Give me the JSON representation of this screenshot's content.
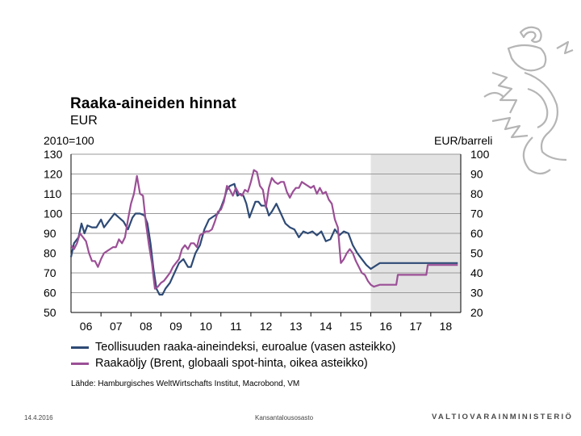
{
  "title": "Raaka-aineiden  hinnat",
  "subtitle": "EUR",
  "left_axis_unit": "2010=100",
  "right_axis_unit": "EUR/barreli",
  "colors": {
    "industrial": "#2e4a75",
    "brent": "#9b4f96",
    "forecast_shade": "#e3e3e3",
    "grid": "#999999"
  },
  "chart_data": {
    "type": "line",
    "x_range": [
      2006,
      2019
    ],
    "x_tick_values": [
      2006,
      2007,
      2008,
      2009,
      2010,
      2011,
      2012,
      2013,
      2014,
      2015,
      2016,
      2017,
      2018
    ],
    "x_tick_labels": [
      "06",
      "07",
      "08",
      "09",
      "10",
      "11",
      "12",
      "13",
      "14",
      "15",
      "16",
      "17",
      "18"
    ],
    "y_left": {
      "range": [
        50,
        130
      ],
      "ticks": [
        130,
        120,
        110,
        100,
        90,
        80,
        70,
        60,
        50
      ],
      "unit": "2010=100"
    },
    "y_right": {
      "range": [
        20,
        100
      ],
      "ticks": [
        100,
        90,
        80,
        70,
        60,
        50,
        40,
        30,
        20
      ],
      "unit": "EUR/barreli"
    },
    "forecast_start": 2016,
    "series": [
      {
        "name": "Teollisuuden raaka-aineindeksi, euroalue (vasen asteikko)",
        "axis": "left",
        "x": [
          2006.0,
          2006.1,
          2006.25,
          2006.35,
          2006.45,
          2006.55,
          2006.7,
          2006.85,
          2007.0,
          2007.1,
          2007.25,
          2007.45,
          2007.6,
          2007.75,
          2007.9,
          2008.05,
          2008.15,
          2008.3,
          2008.45,
          2008.55,
          2008.65,
          2008.75,
          2008.85,
          2008.95,
          2009.05,
          2009.15,
          2009.3,
          2009.45,
          2009.6,
          2009.75,
          2009.9,
          2010.0,
          2010.15,
          2010.3,
          2010.45,
          2010.6,
          2010.7,
          2010.8,
          2010.9,
          2011.0,
          2011.1,
          2011.2,
          2011.3,
          2011.45,
          2011.55,
          2011.65,
          2011.75,
          2011.85,
          2011.95,
          2012.05,
          2012.15,
          2012.25,
          2012.35,
          2012.5,
          2012.6,
          2012.7,
          2012.85,
          2013.0,
          2013.15,
          2013.3,
          2013.45,
          2013.6,
          2013.75,
          2013.9,
          2014.05,
          2014.2,
          2014.35,
          2014.5,
          2014.65,
          2014.8,
          2014.95,
          2015.1,
          2015.25,
          2015.4,
          2015.55,
          2015.7,
          2015.85,
          2016.0,
          2016.1,
          2016.3,
          2016.6,
          2017.0,
          2017.5,
          2018.0,
          2018.5,
          2018.9
        ],
        "values": [
          78,
          85,
          88,
          95,
          90,
          94,
          93,
          93,
          97,
          93,
          96,
          100,
          98,
          96,
          92,
          98,
          100,
          100,
          99,
          95,
          85,
          72,
          62,
          59,
          59,
          62,
          65,
          70,
          75,
          77,
          73,
          73,
          80,
          84,
          92,
          97,
          98,
          99,
          100,
          103,
          107,
          112,
          114,
          115,
          109,
          110,
          109,
          105,
          98,
          102,
          106,
          106,
          104,
          104,
          99,
          101,
          105,
          100,
          95,
          93,
          92,
          88,
          91,
          90,
          91,
          89,
          91,
          86,
          87,
          92,
          89,
          91,
          90,
          84,
          80,
          77,
          74,
          72,
          73,
          75,
          75,
          75,
          75,
          75,
          75,
          75
        ]
      },
      {
        "name": "Raakaöljy (Brent, globaali spot-hinta, oikea asteikko)",
        "axis": "right",
        "x": [
          2006.0,
          2006.1,
          2006.2,
          2006.3,
          2006.4,
          2006.5,
          2006.6,
          2006.7,
          2006.8,
          2006.9,
          2007.0,
          2007.1,
          2007.2,
          2007.3,
          2007.4,
          2007.5,
          2007.6,
          2007.7,
          2007.8,
          2007.9,
          2008.0,
          2008.1,
          2008.2,
          2008.3,
          2008.4,
          2008.5,
          2008.6,
          2008.7,
          2008.75,
          2008.8,
          2008.9,
          2009.0,
          2009.1,
          2009.2,
          2009.3,
          2009.4,
          2009.5,
          2009.6,
          2009.7,
          2009.8,
          2009.9,
          2010.0,
          2010.1,
          2010.2,
          2010.3,
          2010.4,
          2010.5,
          2010.6,
          2010.7,
          2010.8,
          2010.9,
          2011.0,
          2011.1,
          2011.2,
          2011.3,
          2011.4,
          2011.5,
          2011.6,
          2011.7,
          2011.8,
          2011.9,
          2012.0,
          2012.1,
          2012.2,
          2012.3,
          2012.4,
          2012.5,
          2012.6,
          2012.7,
          2012.8,
          2012.9,
          2013.0,
          2013.1,
          2013.2,
          2013.3,
          2013.4,
          2013.5,
          2013.6,
          2013.7,
          2013.8,
          2013.9,
          2014.0,
          2014.1,
          2014.2,
          2014.3,
          2014.4,
          2014.5,
          2014.6,
          2014.7,
          2014.8,
          2014.9,
          2015.0,
          2015.1,
          2015.2,
          2015.3,
          2015.4,
          2015.5,
          2015.6,
          2015.7,
          2015.8,
          2015.9,
          2016.0,
          2016.1,
          2016.3,
          2016.85,
          2016.9,
          2017.5,
          2017.85,
          2017.9,
          2018.5,
          2018.9
        ],
        "values": [
          54,
          52,
          55,
          60,
          58,
          56,
          50,
          46,
          46,
          43,
          47,
          50,
          51,
          52,
          53,
          53,
          57,
          55,
          58,
          67,
          75,
          80,
          89,
          80,
          79,
          65,
          54,
          45,
          38,
          32,
          33,
          35,
          36,
          38,
          40,
          43,
          45,
          47,
          52,
          54,
          52,
          55,
          55,
          53,
          59,
          60,
          61,
          61,
          62,
          66,
          71,
          72,
          76,
          84,
          82,
          79,
          83,
          80,
          79,
          82,
          81,
          86,
          92,
          91,
          84,
          82,
          73,
          83,
          88,
          86,
          85,
          86,
          86,
          81,
          78,
          81,
          83,
          83,
          86,
          85,
          84,
          83,
          84,
          80,
          83,
          80,
          81,
          77,
          75,
          67,
          63,
          45,
          47,
          50,
          52,
          50,
          46,
          43,
          40,
          39,
          36,
          34,
          33,
          34,
          34,
          39,
          39,
          39,
          44,
          44,
          44
        ]
      }
    ]
  },
  "source": "Lähde: Hamburgisches WeltWirtschafts Institut, Macrobond, VM",
  "footer_date": "14.4.2016",
  "footer_department": "Kansantalousosasto",
  "footer_logo": "VALTIOVARAINMINISTERIÖ",
  "logo_icon": "lion-coat-of-arms-icon"
}
